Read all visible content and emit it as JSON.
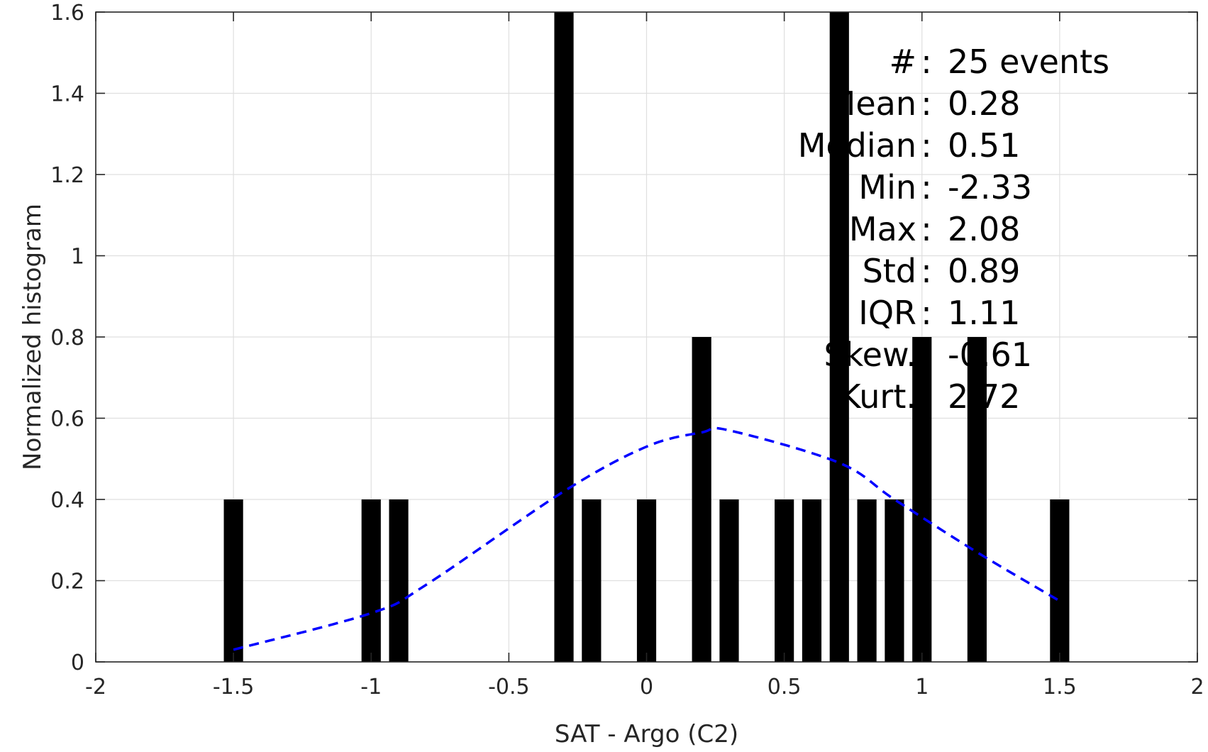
{
  "chart_data": {
    "type": "bar",
    "xlabel": "SAT - Argo (C2)",
    "ylabel": "Normalized histogram",
    "xlim": [
      -2,
      2
    ],
    "ylim": [
      0,
      1.6
    ],
    "xticks": [
      -2,
      -1.5,
      -1,
      -0.5,
      0,
      0.5,
      1,
      1.5,
      2
    ],
    "xtick_labels": [
      "-2",
      "-1.5",
      "-1",
      "-0.5",
      "0",
      "0.5",
      "1",
      "1.5",
      "2"
    ],
    "yticks": [
      0,
      0.2,
      0.4,
      0.6,
      0.8,
      1,
      1.2,
      1.4,
      1.6
    ],
    "ytick_labels": [
      "0",
      "0.2",
      "0.4",
      "0.6",
      "0.8",
      "1",
      "1.2",
      "1.4",
      "1.6"
    ],
    "grid": true,
    "bar_width": 0.07,
    "bars": {
      "x": [
        -1.5,
        -1.0,
        -0.9,
        -0.3,
        -0.2,
        0.0,
        0.2,
        0.3,
        0.5,
        0.6,
        0.7,
        0.8,
        0.9,
        1.0,
        1.2,
        1.5
      ],
      "values": [
        0.4,
        0.4,
        0.4,
        1.6,
        0.4,
        0.4,
        0.8,
        0.4,
        0.4,
        0.4,
        1.6,
        0.4,
        0.4,
        0.8,
        0.8,
        0.4
      ]
    },
    "fit_curve": {
      "style": "dashed",
      "color": "#0000ff",
      "x": [
        -1.5,
        -1.0,
        -0.8,
        -0.3,
        0.0,
        0.2,
        0.3,
        0.7,
        0.9,
        1.2,
        1.5
      ],
      "y": [
        0.03,
        0.12,
        0.19,
        0.42,
        0.53,
        0.565,
        0.57,
        0.49,
        0.4,
        0.27,
        0.15
      ]
    },
    "stats": [
      {
        "label": "#",
        "sep": ":",
        "value": "25 events"
      },
      {
        "label": "Mean",
        "sep": ":",
        "value": "0.28"
      },
      {
        "label": "Median",
        "sep": ":",
        "value": "0.51"
      },
      {
        "label": "Min",
        "sep": ":",
        "value": "-2.33"
      },
      {
        "label": "Max",
        "sep": ":",
        "value": "2.08"
      },
      {
        "label": "Std",
        "sep": ":",
        "value": "0.89"
      },
      {
        "label": "IQR",
        "sep": ":",
        "value": "1.11"
      },
      {
        "label": "Skew.",
        "sep": ":",
        "value": "-0.61"
      },
      {
        "label": "Kurt.",
        "sep": ":",
        "value": "2.72"
      }
    ],
    "colors": {
      "bars": "#000000",
      "fit": "#0000ff",
      "grid": "#dfdfdf",
      "axis": "#262626"
    }
  }
}
